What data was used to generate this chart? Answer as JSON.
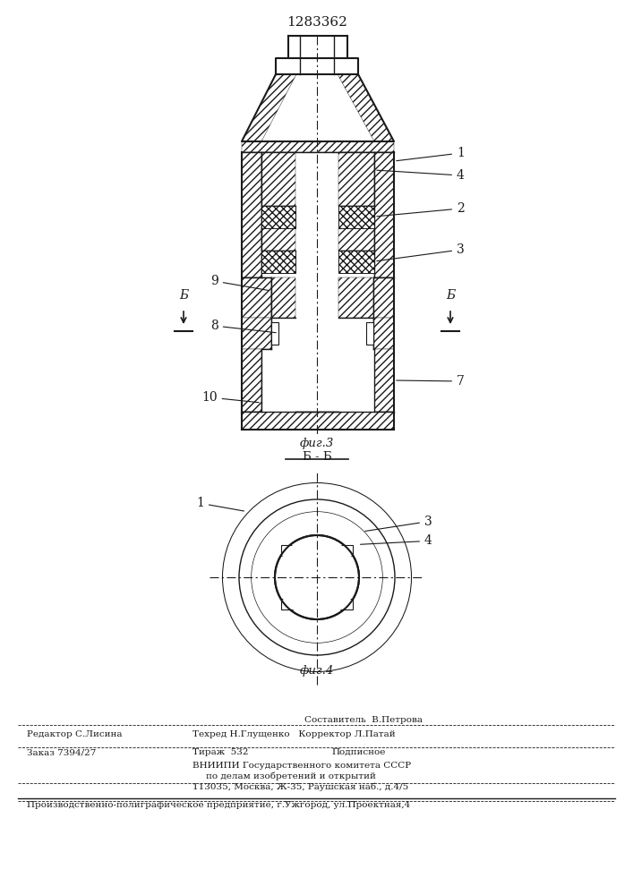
{
  "patent_number": "1283362",
  "fig3_label": "фиг.3",
  "fig4_label": "фиг.4",
  "section_label": "Б - Б",
  "bg_color": "#ffffff",
  "lc": "#1a1a1a",
  "gray": "#888888"
}
